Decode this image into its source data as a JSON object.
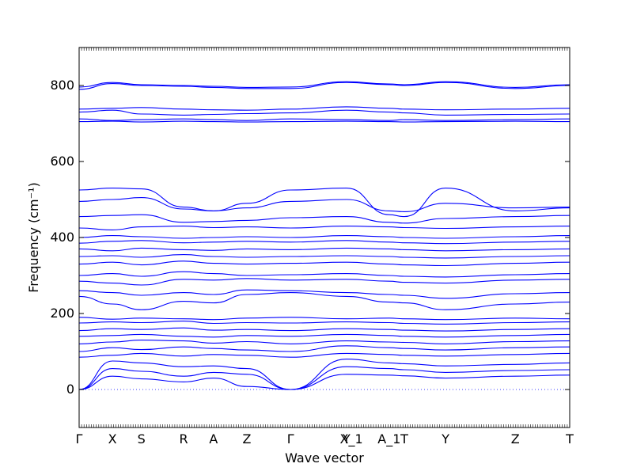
{
  "chart_data": {
    "type": "line",
    "xlabel": "Wave vector",
    "ylabel": "Frequency (cm⁻¹)",
    "ylim": [
      -100,
      900
    ],
    "yticks": [
      0,
      200,
      400,
      600,
      800
    ],
    "high_symmetry_points": [
      {
        "label": "Γ",
        "x": 0.0
      },
      {
        "label": "X",
        "x": 0.068
      },
      {
        "label": "S",
        "x": 0.127
      },
      {
        "label": "R",
        "x": 0.213
      },
      {
        "label": "A",
        "x": 0.274
      },
      {
        "label": "Z",
        "x": 0.342
      },
      {
        "label": "Γ",
        "x": 0.431
      },
      {
        "label": "Y",
        "x": 0.545
      },
      {
        "label": "X_1",
        "x": 0.555
      },
      {
        "label": "A_1",
        "x": 0.632
      },
      {
        "label": "T",
        "x": 0.663
      },
      {
        "label": "Y",
        "x": 0.747
      },
      {
        "label": "Z",
        "x": 0.889
      },
      {
        "label": "T",
        "x": 1.0
      }
    ],
    "line_color": "#0000ff",
    "zero_line": {
      "y": 0,
      "style": "dotted"
    },
    "bands": [
      {
        "group": "acoustic",
        "x": [
          0.0,
          0.068,
          0.127,
          0.213,
          0.274,
          0.342,
          0.431,
          0.545,
          0.632,
          0.663,
          0.747,
          0.889,
          1.0
        ],
        "values": [
          0,
          35,
          28,
          20,
          30,
          8,
          0,
          40,
          38,
          36,
          30,
          35,
          38
        ]
      },
      {
        "group": "acoustic",
        "x": [
          0.0,
          0.068,
          0.127,
          0.213,
          0.274,
          0.342,
          0.431,
          0.545,
          0.632,
          0.663,
          0.747,
          0.889,
          1.0
        ],
        "values": [
          0,
          55,
          48,
          35,
          45,
          40,
          0,
          60,
          55,
          52,
          45,
          50,
          52
        ]
      },
      {
        "group": "acoustic",
        "x": [
          0.0,
          0.068,
          0.127,
          0.213,
          0.274,
          0.342,
          0.431,
          0.545,
          0.632,
          0.663,
          0.747,
          0.889,
          1.0
        ],
        "values": [
          0,
          75,
          70,
          60,
          62,
          55,
          0,
          80,
          70,
          68,
          62,
          66,
          70
        ]
      },
      {
        "group": "low",
        "x": [
          0.0,
          0.068,
          0.127,
          0.213,
          0.274,
          0.342,
          0.431,
          0.545,
          0.632,
          0.663,
          0.747,
          0.889,
          1.0
        ],
        "values": [
          85,
          90,
          95,
          88,
          92,
          90,
          85,
          95,
          92,
          90,
          88,
          92,
          95
        ]
      },
      {
        "group": "low",
        "x": [
          0.0,
          0.068,
          0.127,
          0.213,
          0.274,
          0.342,
          0.431,
          0.545,
          0.632,
          0.663,
          0.747,
          0.889,
          1.0
        ],
        "values": [
          100,
          110,
          105,
          112,
          108,
          104,
          100,
          115,
          110,
          108,
          104,
          110,
          112
        ]
      },
      {
        "group": "low",
        "x": [
          0.0,
          0.068,
          0.127,
          0.213,
          0.274,
          0.342,
          0.431,
          0.545,
          0.632,
          0.663,
          0.747,
          0.889,
          1.0
        ],
        "values": [
          120,
          125,
          130,
          128,
          122,
          126,
          120,
          128,
          125,
          124,
          120,
          126,
          128
        ]
      },
      {
        "group": "low",
        "x": [
          0.0,
          0.068,
          0.127,
          0.213,
          0.274,
          0.342,
          0.431,
          0.545,
          0.632,
          0.663,
          0.747,
          0.889,
          1.0
        ],
        "values": [
          140,
          142,
          145,
          140,
          138,
          142,
          140,
          145,
          142,
          140,
          138,
          142,
          145
        ]
      },
      {
        "group": "low",
        "x": [
          0.0,
          0.068,
          0.127,
          0.213,
          0.274,
          0.342,
          0.431,
          0.545,
          0.632,
          0.663,
          0.747,
          0.889,
          1.0
        ],
        "values": [
          155,
          160,
          158,
          162,
          156,
          158,
          155,
          160,
          158,
          156,
          154,
          158,
          160
        ]
      },
      {
        "group": "low",
        "x": [
          0.0,
          0.068,
          0.127,
          0.213,
          0.274,
          0.342,
          0.431,
          0.545,
          0.632,
          0.663,
          0.747,
          0.889,
          1.0
        ],
        "values": [
          175,
          178,
          176,
          180,
          174,
          176,
          175,
          178,
          176,
          174,
          172,
          176,
          178
        ]
      },
      {
        "group": "low",
        "x": [
          0.0,
          0.068,
          0.127,
          0.213,
          0.274,
          0.342,
          0.431,
          0.545,
          0.632,
          0.663,
          0.747,
          0.889,
          1.0
        ],
        "values": [
          190,
          185,
          188,
          186,
          184,
          188,
          190,
          186,
          188,
          186,
          184,
          188,
          186
        ]
      },
      {
        "group": "mid",
        "x": [
          0.0,
          0.068,
          0.127,
          0.213,
          0.274,
          0.342,
          0.431,
          0.545,
          0.632,
          0.663,
          0.747,
          0.889,
          1.0
        ],
        "values": [
          245,
          225,
          210,
          232,
          228,
          250,
          255,
          245,
          230,
          228,
          210,
          225,
          230
        ]
      },
      {
        "group": "mid",
        "x": [
          0.0,
          0.068,
          0.127,
          0.213,
          0.274,
          0.342,
          0.431,
          0.545,
          0.632,
          0.663,
          0.747,
          0.889,
          1.0
        ],
        "values": [
          260,
          255,
          248,
          255,
          250,
          262,
          260,
          255,
          250,
          248,
          240,
          252,
          255
        ]
      },
      {
        "group": "mid",
        "x": [
          0.0,
          0.068,
          0.127,
          0.213,
          0.274,
          0.342,
          0.431,
          0.545,
          0.632,
          0.663,
          0.747,
          0.889,
          1.0
        ],
        "values": [
          285,
          280,
          275,
          290,
          288,
          292,
          288,
          290,
          285,
          282,
          280,
          288,
          290
        ]
      },
      {
        "group": "mid",
        "x": [
          0.0,
          0.068,
          0.127,
          0.213,
          0.274,
          0.342,
          0.431,
          0.545,
          0.632,
          0.663,
          0.747,
          0.889,
          1.0
        ],
        "values": [
          300,
          305,
          298,
          310,
          305,
          300,
          302,
          305,
          300,
          298,
          296,
          302,
          305
        ]
      },
      {
        "group": "mid",
        "x": [
          0.0,
          0.068,
          0.127,
          0.213,
          0.274,
          0.342,
          0.431,
          0.545,
          0.632,
          0.663,
          0.747,
          0.889,
          1.0
        ],
        "values": [
          330,
          335,
          328,
          338,
          332,
          330,
          332,
          335,
          330,
          328,
          326,
          332,
          335
        ]
      },
      {
        "group": "mid",
        "x": [
          0.0,
          0.068,
          0.127,
          0.213,
          0.274,
          0.342,
          0.431,
          0.545,
          0.632,
          0.663,
          0.747,
          0.889,
          1.0
        ],
        "values": [
          350,
          352,
          348,
          355,
          350,
          348,
          350,
          352,
          350,
          348,
          346,
          350,
          352
        ]
      },
      {
        "group": "mid",
        "x": [
          0.0,
          0.068,
          0.127,
          0.213,
          0.274,
          0.342,
          0.431,
          0.545,
          0.632,
          0.663,
          0.747,
          0.889,
          1.0
        ],
        "values": [
          370,
          365,
          372,
          368,
          366,
          370,
          368,
          372,
          370,
          368,
          365,
          368,
          370
        ]
      },
      {
        "group": "mid",
        "x": [
          0.0,
          0.068,
          0.127,
          0.213,
          0.274,
          0.342,
          0.431,
          0.545,
          0.632,
          0.663,
          0.747,
          0.889,
          1.0
        ],
        "values": [
          385,
          390,
          392,
          386,
          388,
          390,
          388,
          392,
          388,
          386,
          384,
          388,
          390
        ]
      },
      {
        "group": "mid",
        "x": [
          0.0,
          0.068,
          0.127,
          0.213,
          0.274,
          0.342,
          0.431,
          0.545,
          0.632,
          0.663,
          0.747,
          0.889,
          1.0
        ],
        "values": [
          400,
          405,
          402,
          398,
          400,
          402,
          400,
          405,
          402,
          400,
          398,
          402,
          405
        ]
      },
      {
        "group": "mid",
        "x": [
          0.0,
          0.068,
          0.127,
          0.213,
          0.274,
          0.342,
          0.431,
          0.545,
          0.632,
          0.663,
          0.747,
          0.889,
          1.0
        ],
        "values": [
          425,
          420,
          428,
          430,
          426,
          428,
          425,
          430,
          428,
          426,
          424,
          428,
          430
        ]
      },
      {
        "group": "mid",
        "x": [
          0.0,
          0.068,
          0.127,
          0.213,
          0.274,
          0.342,
          0.431,
          0.545,
          0.632,
          0.663,
          0.747,
          0.889,
          1.0
        ],
        "values": [
          455,
          458,
          460,
          440,
          442,
          445,
          452,
          455,
          440,
          438,
          450,
          455,
          458
        ]
      },
      {
        "group": "mid",
        "x": [
          0.0,
          0.068,
          0.127,
          0.213,
          0.274,
          0.342,
          0.431,
          0.545,
          0.632,
          0.663,
          0.747,
          0.889,
          1.0
        ],
        "values": [
          495,
          500,
          505,
          475,
          470,
          478,
          495,
          500,
          470,
          468,
          490,
          478,
          480
        ]
      },
      {
        "group": "mid",
        "x": [
          0.0,
          0.068,
          0.127,
          0.213,
          0.274,
          0.342,
          0.431,
          0.545,
          0.632,
          0.663,
          0.747,
          0.889,
          1.0
        ],
        "values": [
          525,
          530,
          528,
          480,
          470,
          490,
          525,
          530,
          460,
          455,
          530,
          470,
          478
        ]
      },
      {
        "group": "high",
        "x": [
          0.0,
          0.068,
          0.127,
          0.213,
          0.274,
          0.342,
          0.431,
          0.545,
          0.632,
          0.663,
          0.747,
          0.889,
          1.0
        ],
        "values": [
          705,
          706,
          704,
          706,
          705,
          704,
          705,
          706,
          705,
          704,
          705,
          706,
          705
        ]
      },
      {
        "group": "high",
        "x": [
          0.0,
          0.068,
          0.127,
          0.213,
          0.274,
          0.342,
          0.431,
          0.545,
          0.632,
          0.663,
          0.747,
          0.889,
          1.0
        ],
        "values": [
          712,
          708,
          710,
          712,
          710,
          708,
          712,
          710,
          708,
          710,
          708,
          710,
          712
        ]
      },
      {
        "group": "high",
        "x": [
          0.0,
          0.068,
          0.127,
          0.213,
          0.274,
          0.342,
          0.431,
          0.545,
          0.632,
          0.663,
          0.747,
          0.889,
          1.0
        ],
        "values": [
          730,
          735,
          725,
          722,
          724,
          726,
          728,
          735,
          730,
          728,
          722,
          724,
          725
        ]
      },
      {
        "group": "high",
        "x": [
          0.0,
          0.068,
          0.127,
          0.213,
          0.274,
          0.342,
          0.431,
          0.545,
          0.632,
          0.663,
          0.747,
          0.889,
          1.0
        ],
        "values": [
          738,
          740,
          742,
          738,
          736,
          735,
          738,
          744,
          740,
          738,
          736,
          738,
          740
        ]
      },
      {
        "group": "high",
        "x": [
          0.0,
          0.068,
          0.127,
          0.213,
          0.274,
          0.342,
          0.431,
          0.545,
          0.632,
          0.663,
          0.747,
          0.889,
          1.0
        ],
        "values": [
          790,
          805,
          800,
          798,
          795,
          792,
          792,
          808,
          802,
          800,
          808,
          792,
          800
        ]
      },
      {
        "group": "high",
        "x": [
          0.0,
          0.068,
          0.127,
          0.213,
          0.274,
          0.342,
          0.431,
          0.545,
          0.632,
          0.663,
          0.747,
          0.889,
          1.0
        ],
        "values": [
          796,
          808,
          802,
          800,
          798,
          795,
          796,
          810,
          804,
          802,
          810,
          795,
          802
        ]
      }
    ]
  }
}
